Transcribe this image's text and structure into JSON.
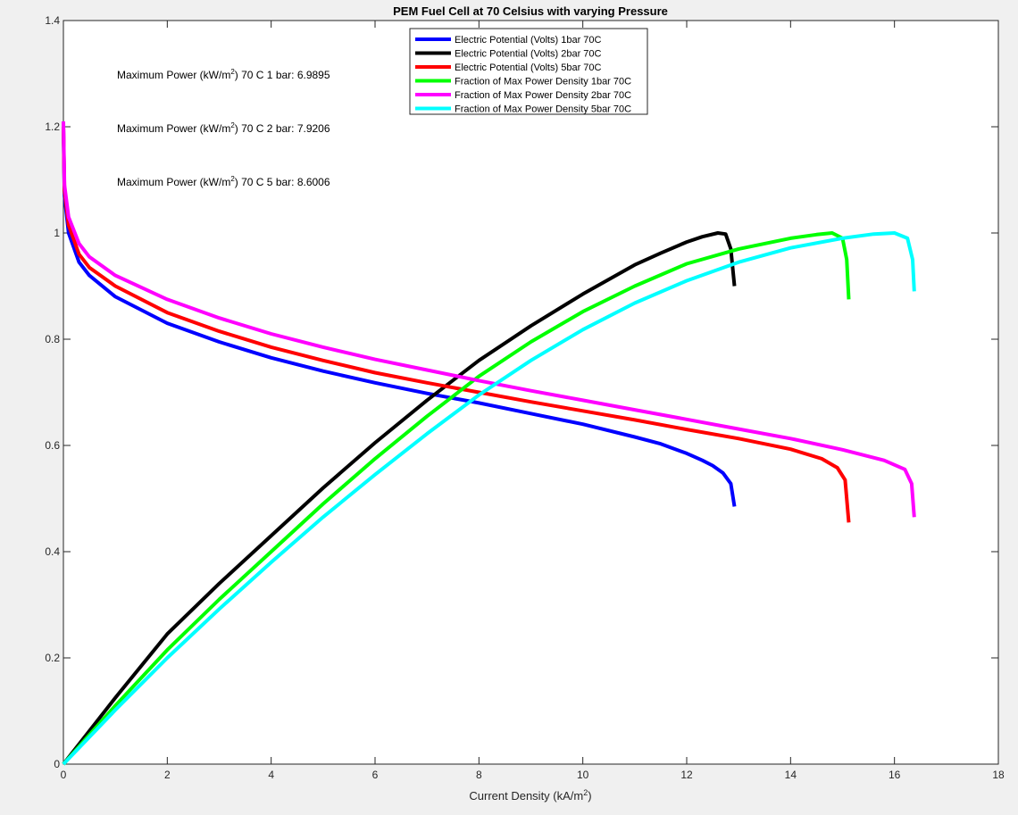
{
  "chart_data": {
    "type": "line",
    "title": "PEM Fuel Cell at 70 Celsius with varying Pressure",
    "xlabel": "Current Density (kA/m",
    "xlabel_sup": "2",
    "xlabel_end": ")",
    "ylabel": "",
    "xlim": [
      0,
      18
    ],
    "ylim": [
      0,
      1.4
    ],
    "x_ticks": [
      "0",
      "2",
      "4",
      "6",
      "8",
      "10",
      "12",
      "14",
      "16",
      "18"
    ],
    "y_ticks": [
      "0",
      "0.2",
      "0.4",
      "0.6",
      "0.8",
      "1",
      "1.2",
      "1.4"
    ],
    "grid": false,
    "legend_position": "top-center",
    "annotations": [
      {
        "prefix": "Maximum Power (kW/m",
        "sup": "2",
        "suffix": ") 70 C 1 bar: 6.9895"
      },
      {
        "prefix": "Maximum Power (kW/m",
        "sup": "2",
        "suffix": ") 70 C 2 bar: 7.9206"
      },
      {
        "prefix": "Maximum Power (kW/m",
        "sup": "2",
        "suffix": ") 70 C 5 bar: 8.6006"
      }
    ],
    "series": [
      {
        "name": "Electric Potential (Volts) 1bar 70C",
        "color": "#0000ff",
        "x": [
          0,
          0.02,
          0.1,
          0.3,
          0.5,
          1,
          2,
          3,
          4,
          5,
          6,
          7,
          8,
          9,
          10,
          11,
          11.5,
          12,
          12.3,
          12.5,
          12.7,
          12.85,
          12.92
        ],
        "y": [
          1.2,
          1.07,
          1.0,
          0.945,
          0.92,
          0.88,
          0.83,
          0.795,
          0.765,
          0.74,
          0.718,
          0.698,
          0.68,
          0.66,
          0.64,
          0.616,
          0.603,
          0.585,
          0.572,
          0.562,
          0.548,
          0.528,
          0.485
        ]
      },
      {
        "name": "Electric Potential (Volts) 2bar 70C",
        "color": "#000000",
        "x": [
          0,
          1,
          2,
          3,
          4,
          5,
          6,
          7,
          8,
          9,
          10,
          11,
          11.5,
          12,
          12.3,
          12.6,
          12.75,
          12.85,
          12.92
        ],
        "y": [
          0,
          0.125,
          0.245,
          0.34,
          0.43,
          0.52,
          0.605,
          0.685,
          0.76,
          0.825,
          0.885,
          0.94,
          0.962,
          0.983,
          0.993,
          1.0,
          0.998,
          0.97,
          0.9
        ]
      },
      {
        "name": "Electric Potential (Volts) 5bar 70C",
        "color": "#ff0000",
        "x": [
          0,
          0.02,
          0.1,
          0.3,
          0.5,
          1,
          2,
          3,
          4,
          5,
          6,
          7,
          8,
          9,
          10,
          11,
          12,
          13,
          14,
          14.6,
          14.9,
          15.05,
          15.12
        ],
        "y": [
          1.2,
          1.08,
          1.015,
          0.96,
          0.935,
          0.9,
          0.85,
          0.815,
          0.785,
          0.76,
          0.737,
          0.718,
          0.7,
          0.682,
          0.665,
          0.648,
          0.63,
          0.613,
          0.593,
          0.575,
          0.558,
          0.535,
          0.455
        ]
      },
      {
        "name": "Fraction of Max Power Density 1bar 70C",
        "color": "#00ff00",
        "x": [
          0,
          1,
          2,
          3,
          4,
          5,
          6,
          7,
          8,
          9,
          10,
          11,
          12,
          13,
          14,
          14.5,
          14.8,
          15.0,
          15.08,
          15.12
        ],
        "y": [
          0,
          0.11,
          0.215,
          0.31,
          0.4,
          0.49,
          0.575,
          0.655,
          0.73,
          0.795,
          0.852,
          0.9,
          0.942,
          0.97,
          0.99,
          0.997,
          1.0,
          0.99,
          0.95,
          0.875
        ]
      },
      {
        "name": "Fraction of Max Power Density 2bar 70C",
        "color": "#ff00ff",
        "x": [
          0,
          0.02,
          0.1,
          0.3,
          0.5,
          1,
          2,
          3,
          4,
          5,
          6,
          7,
          8,
          9,
          10,
          11,
          12,
          13,
          14,
          15,
          15.8,
          16.2,
          16.33,
          16.38
        ],
        "y": [
          1.21,
          1.09,
          1.03,
          0.98,
          0.955,
          0.92,
          0.875,
          0.84,
          0.81,
          0.785,
          0.762,
          0.742,
          0.722,
          0.703,
          0.685,
          0.667,
          0.649,
          0.631,
          0.613,
          0.592,
          0.572,
          0.555,
          0.528,
          0.465
        ]
      },
      {
        "name": "Fraction of Max Power Density 5bar 70C",
        "color": "#00ffff",
        "x": [
          0,
          1,
          2,
          3,
          4,
          5,
          6,
          7,
          8,
          9,
          10,
          11,
          12,
          13,
          14,
          15,
          15.6,
          16.0,
          16.25,
          16.35,
          16.38
        ],
        "y": [
          0,
          0.102,
          0.2,
          0.292,
          0.38,
          0.465,
          0.545,
          0.622,
          0.695,
          0.76,
          0.818,
          0.868,
          0.91,
          0.945,
          0.972,
          0.99,
          0.998,
          1.0,
          0.99,
          0.95,
          0.89
        ]
      }
    ]
  }
}
